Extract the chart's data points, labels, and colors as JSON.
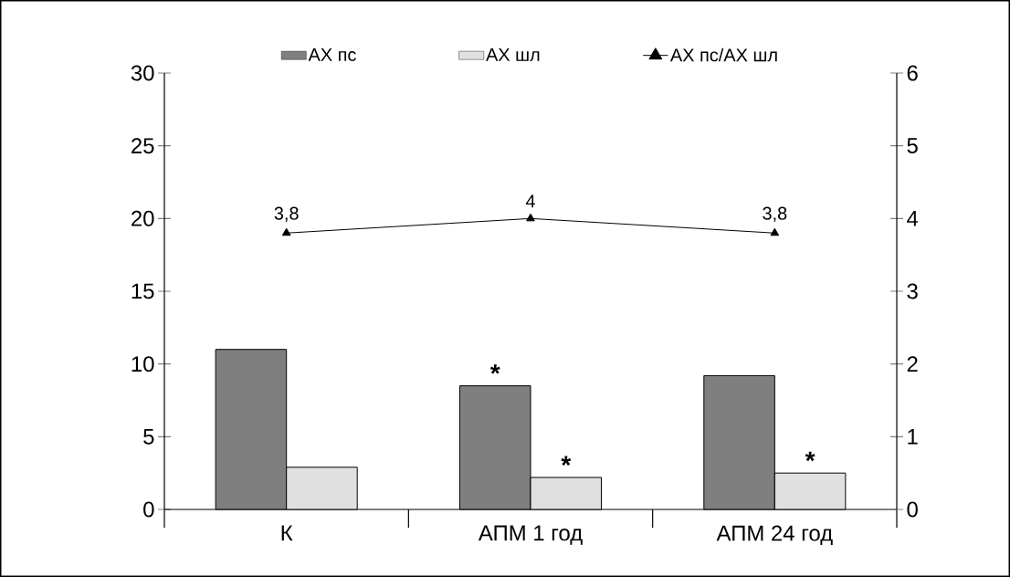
{
  "chart_data": {
    "type": "bar",
    "categories": [
      "К",
      "АПМ 1 год",
      "АПМ 24 год"
    ],
    "series": [
      {
        "name": "АХ пс",
        "color": "#7f7f7f",
        "values": [
          11,
          8.5,
          9.2
        ]
      },
      {
        "name": "АХ шл",
        "color": "#e0e0e0",
        "values": [
          2.9,
          2.2,
          2.5
        ]
      },
      {
        "name": "АХ пс/АХ шл",
        "type": "line",
        "axis": "y2",
        "color": "#000000",
        "marker": "triangle",
        "values": [
          3.8,
          4,
          3.8
        ],
        "value_labels": [
          "3,8",
          "4",
          "3,8"
        ]
      }
    ],
    "ylim": [
      0,
      30
    ],
    "yticks": [
      0,
      5,
      10,
      15,
      20,
      25,
      30
    ],
    "y2lim": [
      0,
      6
    ],
    "y2ticks": [
      0,
      1,
      2,
      3,
      4,
      5,
      6
    ],
    "legend": "top",
    "annotations": [
      {
        "text": "*",
        "x": "АПМ 1 год",
        "y": 8.5
      },
      {
        "text": "*",
        "x": "АПМ 1 год",
        "y": 2.2
      },
      {
        "text": "*",
        "x": "АПМ 24 год",
        "y": 2.5
      }
    ]
  }
}
